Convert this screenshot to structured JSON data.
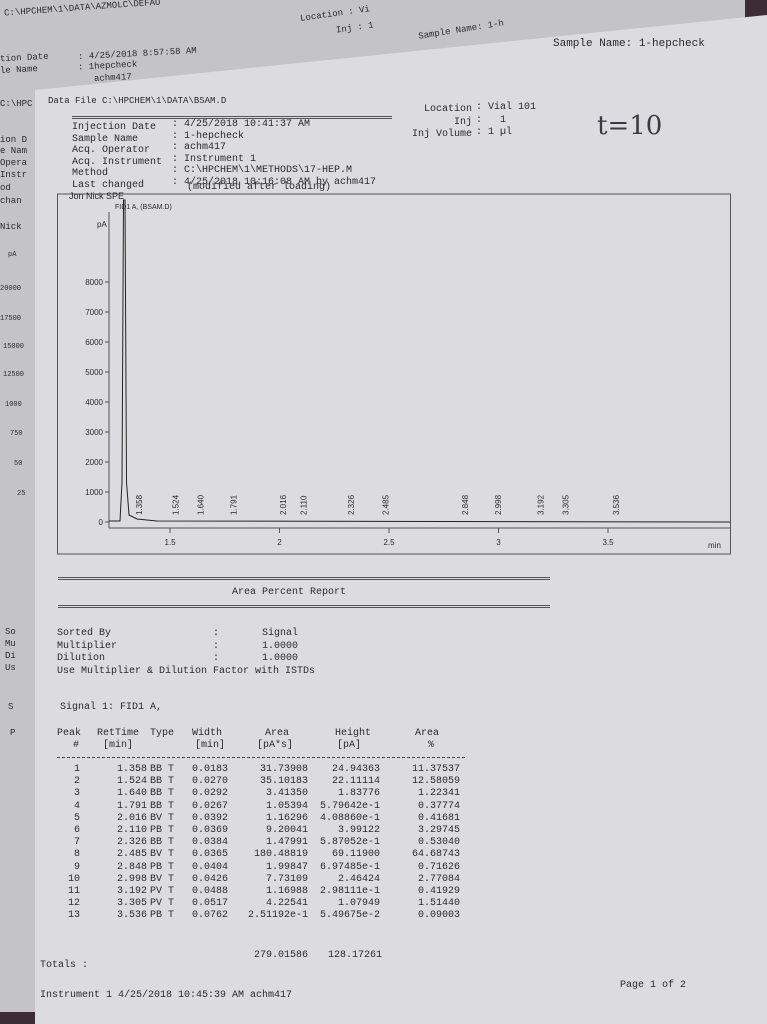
{
  "back_sheet": {
    "texts": [
      "C:\\HPCHEM\\1\\DATA\\AZMOLC\\DEFAU",
      "Location : Vi",
      "Inj : 1",
      "Sample Name: 1-h",
      "tion Date",
      ": 4/25/2018 8:57:58 AM",
      "le Name",
      ": 1hepcheck",
      "achm417",
      "C:\\HPC",
      "ion D",
      "e Nam",
      "Opera",
      "Instr",
      "od",
      "chan",
      "Nick",
      "pA",
      "20000",
      "17500",
      "15000",
      "12500",
      "1000",
      "750",
      "50",
      "25",
      "So",
      "Mu",
      "Di",
      "Us",
      "S",
      "P"
    ]
  },
  "header": {
    "sample_name": "Sample Name: 1-hepcheck",
    "handwritten": "t=10",
    "data_file": "Data File C:\\HPCHEM\\1\\DATA\\BSAM.D"
  },
  "info": {
    "rows": [
      {
        "label": "Injection Date",
        "value": ": 4/25/2018 10:41:37 AM"
      },
      {
        "label": "Sample Name",
        "value": ": 1-hepcheck"
      },
      {
        "label": "Acq. Operator",
        "value": ": achm417"
      },
      {
        "label": "Acq. Instrument",
        "value": ": Instrument 1"
      },
      {
        "label": "Method",
        "value": ": C:\\HPCHEM\\1\\METHODS\\17-HEP.M"
      },
      {
        "label": "Last changed",
        "value": ": 4/25/2018 10:16:08 AM by achm417"
      }
    ],
    "note": "(modified after loading)",
    "right": [
      {
        "label": "Location",
        "value": ": Vial 101"
      },
      {
        "label": "Inj",
        "value": ":   1"
      },
      {
        "label": "Inj Volume",
        "value": ": 1 µl"
      }
    ]
  },
  "chromatogram": {
    "title": "Jon Nick SPE",
    "signal": "FID1 A, (BSAM.D)",
    "y_label": "pA",
    "x_label": "min",
    "yticks": [
      0,
      1000,
      2000,
      3000,
      4000,
      5000,
      6000,
      7000,
      8000
    ],
    "xticks": [
      1.5,
      2,
      2.5,
      3,
      3.5
    ],
    "peaks": [
      "1.358",
      "1.524",
      "1.640",
      "1.791",
      "2.016",
      "2.110",
      "2.326",
      "2.485",
      "2.848",
      "2.998",
      "3.192",
      "3.305",
      "3.536"
    ]
  },
  "report": {
    "title": "Area Percent Report",
    "settings": [
      {
        "label": "Sorted By",
        "sep": ":",
        "value": "Signal"
      },
      {
        "label": "Multiplier",
        "sep": ":",
        "value": "1.0000"
      },
      {
        "label": "Dilution",
        "sep": ":",
        "value": "1.0000"
      }
    ],
    "note": "Use Multiplier & Dilution Factor with ISTDs",
    "signal": "Signal 1: FID1 A,",
    "columns": [
      {
        "top": "Peak",
        "bottom": "#"
      },
      {
        "top": "RetTime",
        "bottom": "[min]"
      },
      {
        "top": "Type"
      },
      {
        "top": "Width",
        "bottom": "[min]"
      },
      {
        "top": "Area",
        "bottom": "[pA*s]"
      },
      {
        "top": "Height",
        "bottom": "[pA]"
      },
      {
        "top": "Area",
        "bottom": "%"
      }
    ],
    "rows": [
      [
        "1",
        "1.358",
        "BB T",
        "0.0183",
        "31.73908",
        "24.94363",
        "11.37537"
      ],
      [
        "2",
        "1.524",
        "BB T",
        "0.0270",
        "35.10183",
        "22.11114",
        "12.58059"
      ],
      [
        "3",
        "1.640",
        "BB T",
        "0.0292",
        "3.41350",
        "1.83776",
        "1.22341"
      ],
      [
        "4",
        "1.791",
        "BB T",
        "0.0267",
        "1.05394",
        "5.79642e-1",
        "0.37774"
      ],
      [
        "5",
        "2.016",
        "BV T",
        "0.0392",
        "1.16296",
        "4.08860e-1",
        "0.41681"
      ],
      [
        "6",
        "2.110",
        "PB T",
        "0.0369",
        "9.20041",
        "3.99122",
        "3.29745"
      ],
      [
        "7",
        "2.326",
        "BB T",
        "0.0384",
        "1.47991",
        "5.87052e-1",
        "0.53040"
      ],
      [
        "8",
        "2.485",
        "BV T",
        "0.0365",
        "180.48819",
        "69.11900",
        "64.68743"
      ],
      [
        "9",
        "2.848",
        "PB T",
        "0.0404",
        "1.99847",
        "6.97485e-1",
        "0.71626"
      ],
      [
        "10",
        "2.998",
        "BV T",
        "0.0426",
        "7.73109",
        "2.46424",
        "2.77084"
      ],
      [
        "11",
        "3.192",
        "PV T",
        "0.0488",
        "1.16988",
        "2.98111e-1",
        "0.41929"
      ],
      [
        "12",
        "3.305",
        "PV T",
        "0.0517",
        "4.22541",
        "1.07949",
        "1.51440"
      ],
      [
        "13",
        "3.536",
        "PB T",
        "0.0762",
        "2.51192e-1",
        "5.49675e-2",
        "0.09003"
      ]
    ],
    "totals": {
      "label": "Totals :",
      "area": "279.01586",
      "height": "128.17261"
    }
  },
  "footer": {
    "left": "Instrument 1 4/25/2018 10:45:39 AM achm417",
    "right": "Page 1 of 2"
  }
}
